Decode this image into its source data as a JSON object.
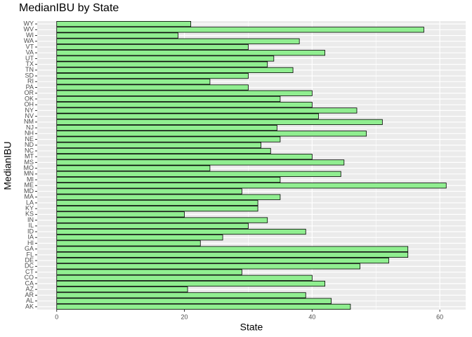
{
  "chart_data": {
    "type": "barh",
    "title": "MedianIBU by State",
    "x_label": "State",
    "y_label": "MedianIBU",
    "categories": [
      "AK",
      "AL",
      "AR",
      "AZ",
      "CA",
      "CO",
      "CT",
      "DC",
      "DE",
      "FL",
      "GA",
      "HI",
      "IA",
      "ID",
      "IL",
      "IN",
      "KS",
      "KY",
      "LA",
      "MA",
      "MD",
      "ME",
      "MI",
      "MN",
      "MO",
      "MS",
      "MT",
      "NC",
      "ND",
      "NE",
      "NH",
      "NJ",
      "NM",
      "NV",
      "NY",
      "OH",
      "OK",
      "OR",
      "PA",
      "RI",
      "SD",
      "TN",
      "TX",
      "UT",
      "VA",
      "VT",
      "WA",
      "WI",
      "WV",
      "WY"
    ],
    "values": [
      46,
      43,
      39,
      20.5,
      42,
      40,
      29,
      47.5,
      52,
      55,
      55,
      22.5,
      26,
      39,
      30,
      33,
      20,
      31.5,
      31.5,
      35,
      29,
      61,
      35,
      44.5,
      24,
      45,
      40,
      33.5,
      32,
      35,
      48.5,
      34.5,
      51,
      41,
      47,
      40,
      35,
      40,
      30,
      24,
      30,
      37,
      33,
      34,
      42,
      30,
      38,
      19,
      57.5,
      21
    ],
    "color": "#90ee90",
    "edge_color": "#000000",
    "xlim": [
      -3.05,
      64.05
    ],
    "xticks": [
      0,
      20,
      40,
      60
    ],
    "grid": true
  }
}
